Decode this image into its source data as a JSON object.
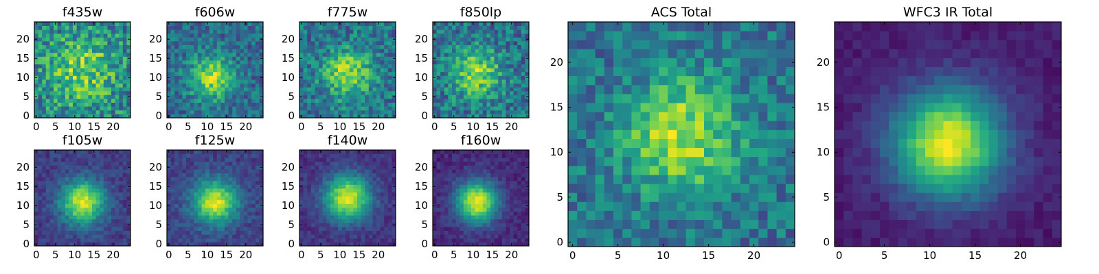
{
  "chart_data": [
    {
      "type": "heatmap",
      "title": "f435w",
      "xlim": [
        0,
        24
      ],
      "ylim": [
        0,
        24
      ],
      "x_ticks": [
        "0",
        "5",
        "10",
        "15",
        "20"
      ],
      "y_ticks": [
        "0",
        "5",
        "10",
        "15",
        "20"
      ],
      "grid": false,
      "colormap": "viridis",
      "peak_center": [
        12,
        12
      ],
      "peak_width": 6,
      "peak_level": 0.35,
      "background_level": 0.45,
      "noise_level": 0.5
    },
    {
      "type": "heatmap",
      "title": "f606w",
      "xlim": [
        0,
        24
      ],
      "ylim": [
        0,
        24
      ],
      "x_ticks": [
        "0",
        "5",
        "10",
        "15",
        "20"
      ],
      "y_ticks": [
        "0",
        "5",
        "10",
        "15",
        "20"
      ],
      "grid": false,
      "colormap": "viridis",
      "peak_center": [
        11,
        10
      ],
      "peak_width": 4,
      "peak_level": 0.5,
      "background_level": 0.35,
      "noise_level": 0.35
    },
    {
      "type": "heatmap",
      "title": "f775w",
      "xlim": [
        0,
        24
      ],
      "ylim": [
        0,
        24
      ],
      "x_ticks": [
        "0",
        "5",
        "10",
        "15",
        "20"
      ],
      "y_ticks": [
        "0",
        "5",
        "10",
        "15",
        "20"
      ],
      "grid": false,
      "colormap": "viridis",
      "peak_center": [
        12,
        11
      ],
      "peak_width": 4.5,
      "peak_level": 0.45,
      "background_level": 0.38,
      "noise_level": 0.4
    },
    {
      "type": "heatmap",
      "title": "f850lp",
      "xlim": [
        0,
        24
      ],
      "ylim": [
        0,
        24
      ],
      "x_ticks": [
        "0",
        "5",
        "10",
        "15",
        "20"
      ],
      "y_ticks": [
        "0",
        "5",
        "10",
        "15",
        "20"
      ],
      "grid": false,
      "colormap": "viridis",
      "peak_center": [
        11,
        11
      ],
      "peak_width": 4.5,
      "peak_level": 0.45,
      "background_level": 0.38,
      "noise_level": 0.42
    },
    {
      "type": "heatmap",
      "title": "f105w",
      "xlim": [
        0,
        24
      ],
      "ylim": [
        0,
        24
      ],
      "x_ticks": [
        "0",
        "5",
        "10",
        "15",
        "20"
      ],
      "y_ticks": [
        "0",
        "5",
        "10",
        "15",
        "20"
      ],
      "grid": false,
      "colormap": "viridis",
      "peak_center": [
        12,
        11
      ],
      "peak_width": 4,
      "peak_level": 0.78,
      "background_level": 0.18,
      "noise_level": 0.18
    },
    {
      "type": "heatmap",
      "title": "f125w",
      "xlim": [
        0,
        24
      ],
      "ylim": [
        0,
        24
      ],
      "x_ticks": [
        "0",
        "5",
        "10",
        "15",
        "20"
      ],
      "y_ticks": [
        "0",
        "5",
        "10",
        "15",
        "20"
      ],
      "grid": false,
      "colormap": "viridis",
      "peak_center": [
        12,
        11
      ],
      "peak_width": 4,
      "peak_level": 0.75,
      "background_level": 0.2,
      "noise_level": 0.18
    },
    {
      "type": "heatmap",
      "title": "f140w",
      "xlim": [
        0,
        24
      ],
      "ylim": [
        0,
        24
      ],
      "x_ticks": [
        "0",
        "5",
        "10",
        "15",
        "20"
      ],
      "y_ticks": [
        "0",
        "5",
        "10",
        "15",
        "20"
      ],
      "grid": false,
      "colormap": "viridis",
      "peak_center": [
        12,
        12
      ],
      "peak_width": 4.2,
      "peak_level": 0.8,
      "background_level": 0.15,
      "noise_level": 0.15
    },
    {
      "type": "heatmap",
      "title": "f160w",
      "xlim": [
        0,
        24
      ],
      "ylim": [
        0,
        24
      ],
      "x_ticks": [
        "0",
        "5",
        "10",
        "15",
        "20"
      ],
      "y_ticks": [
        "0",
        "5",
        "10",
        "15",
        "20"
      ],
      "grid": false,
      "colormap": "viridis",
      "peak_center": [
        11,
        11
      ],
      "peak_width": 3.8,
      "peak_level": 0.85,
      "background_level": 0.12,
      "noise_level": 0.14
    },
    {
      "type": "heatmap",
      "title": "ACS Total",
      "xlim": [
        0,
        24
      ],
      "ylim": [
        0,
        24
      ],
      "x_ticks": [
        "0",
        "5",
        "10",
        "15",
        "20"
      ],
      "y_ticks": [
        "0",
        "5",
        "10",
        "15",
        "20"
      ],
      "grid": false,
      "colormap": "viridis",
      "peak_center": [
        12,
        12
      ],
      "peak_width": 4.5,
      "peak_level": 0.5,
      "background_level": 0.38,
      "noise_level": 0.35
    },
    {
      "type": "heatmap",
      "title": "WFC3 IR Total",
      "xlim": [
        0,
        24
      ],
      "ylim": [
        0,
        24
      ],
      "x_ticks": [
        "0",
        "5",
        "10",
        "15",
        "20"
      ],
      "y_ticks": [
        "0",
        "5",
        "10",
        "15",
        "20"
      ],
      "grid": false,
      "colormap": "viridis",
      "peak_center": [
        12,
        11
      ],
      "peak_width": 4.2,
      "peak_level": 0.9,
      "background_level": 0.08,
      "noise_level": 0.1
    }
  ]
}
